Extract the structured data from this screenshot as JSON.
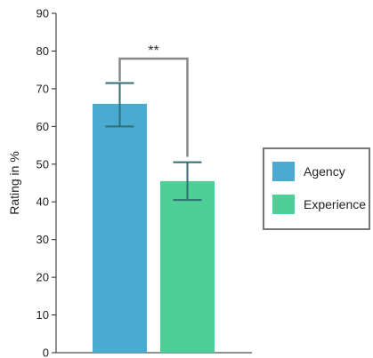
{
  "chart_data": {
    "type": "bar",
    "categories": [
      "Agency",
      "Experience"
    ],
    "values": [
      66,
      45.5
    ],
    "error_low": [
      60,
      40.5
    ],
    "error_high": [
      71.5,
      50.5
    ],
    "ylabel": "Rating in %",
    "xlabel": "",
    "ylim": [
      0,
      90
    ],
    "yticks": [
      "0",
      "10",
      "20",
      "30",
      "40",
      "50",
      "60",
      "70",
      "80",
      "90"
    ],
    "significance": "**",
    "legend": [
      "Agency",
      "Experience"
    ],
    "legend_position": "right",
    "grid": false,
    "colors": {
      "Agency": "#4aaacf",
      "Experience": "#4ecf98",
      "error_bar": "#2f6f73",
      "bracket": "#888888",
      "axis": "#222222"
    }
  }
}
